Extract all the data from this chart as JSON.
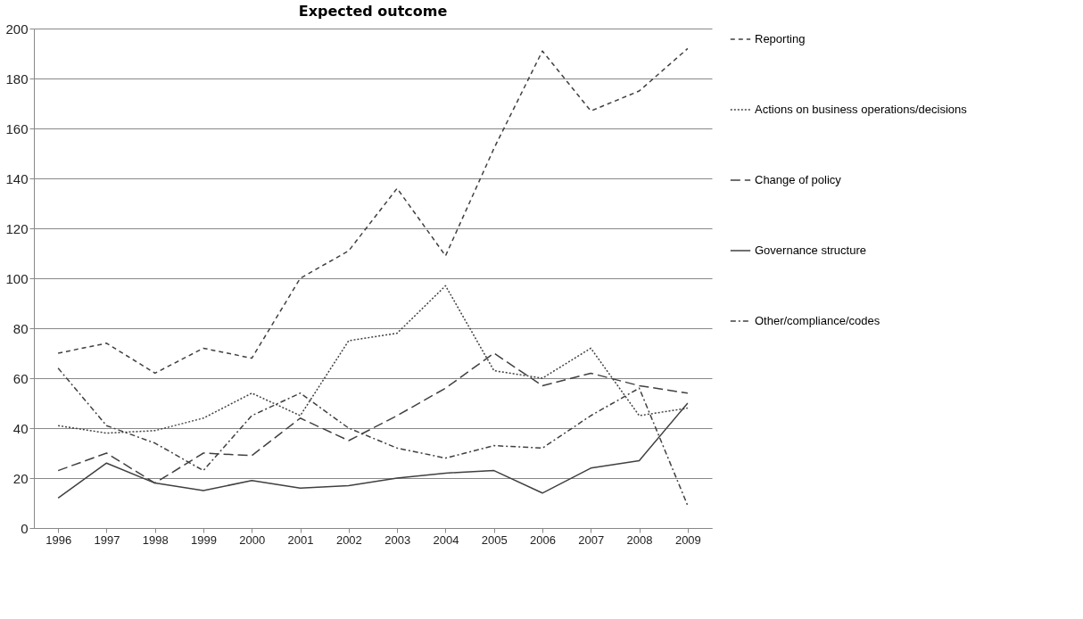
{
  "chart_data": {
    "type": "line",
    "title": "Expected outcome",
    "categories": [
      "1996",
      "1997",
      "1998",
      "1999",
      "2000",
      "2001",
      "2002",
      "2003",
      "2004",
      "2005",
      "2006",
      "2007",
      "2008",
      "2009"
    ],
    "series": [
      {
        "name": "Reporting",
        "color": "#404040",
        "line_style": "dashed",
        "values": [
          70,
          74,
          62,
          72,
          68,
          100,
          111,
          136,
          109,
          152,
          191,
          167,
          175,
          192
        ]
      },
      {
        "name": "Actions on business operations/decisions",
        "color": "#404040",
        "line_style": "dotted",
        "values": [
          41,
          38,
          39,
          44,
          54,
          45,
          75,
          78,
          97,
          63,
          60,
          72,
          45,
          48
        ]
      },
      {
        "name": "Change of policy",
        "color": "#404040",
        "line_style": "dashed",
        "values": [
          23,
          30,
          18,
          30,
          29,
          44,
          35,
          45,
          56,
          70,
          57,
          62,
          57,
          54
        ]
      },
      {
        "name": "Governance structure",
        "color": "#404040",
        "line_style": "solid",
        "values": [
          12,
          26,
          18,
          15,
          19,
          16,
          17,
          20,
          22,
          23,
          14,
          24,
          27,
          50
        ]
      },
      {
        "name": "Other/compliance/codes",
        "color": "#404040",
        "line_style": "dashed",
        "values": [
          64,
          41,
          34,
          23,
          45,
          54,
          40,
          32,
          28,
          33,
          32,
          45,
          56,
          9
        ]
      }
    ],
    "ylim": [
      0,
      200
    ],
    "yticks": [
      0,
      20,
      40,
      60,
      80,
      100,
      120,
      140,
      160,
      180,
      200
    ],
    "grid": "y",
    "legend": "right"
  }
}
